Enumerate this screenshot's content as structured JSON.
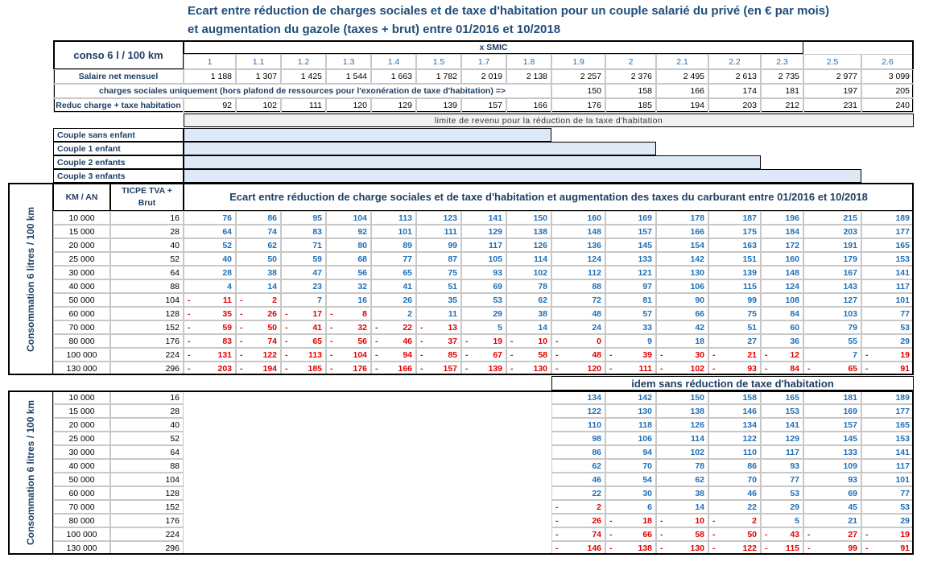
{
  "title": [
    "Ecart entre réduction de charges sociales et de taxe d'habitation pour un couple salarié du privé  (en € par mois)",
    "et augmentation du gazole (taxes + brut)  entre 01/2016 et 10/2018"
  ],
  "header": {
    "conso": "conso 6 l / 100 km",
    "smic_label": "x  SMIC",
    "smic": [
      "1",
      "1.1",
      "1.2",
      "1.3",
      "1.4",
      "1.5",
      "1.7",
      "1.8",
      "1.9",
      "2",
      "2.1",
      "2.2",
      "2.3",
      "2.5",
      "2.6"
    ]
  },
  "salary": {
    "label": "Salaire net mensuel",
    "values": [
      "1 188",
      "1 307",
      "1 425",
      "1 544",
      "1 663",
      "1 782",
      "2 019",
      "2 138",
      "2 257",
      "2 376",
      "2 495",
      "2 613",
      "2 735",
      "2 977",
      "3 099"
    ]
  },
  "charges": {
    "label": "charges sociales uniquement (hors plafond de ressources pour l'exonération de taxe d'habitation) =>",
    "values": [
      "150",
      "158",
      "166",
      "174",
      "181",
      "197",
      "205"
    ]
  },
  "reduc": {
    "label": "Reduc charge + taxe habitation",
    "values": [
      "92",
      "102",
      "111",
      "120",
      "129",
      "139",
      "157",
      "166",
      "176",
      "185",
      "194",
      "203",
      "212",
      "231",
      "240"
    ]
  },
  "limit": {
    "label": "limite de revenu pour la réduction de la taxe d'habitation",
    "couples": [
      "Couple sans enfant",
      "Couple 1 enfant",
      "Couple 2 enfants",
      "Couple 3 enfants"
    ]
  },
  "table1": {
    "side_label": "Consommation 6 litres / 100 km",
    "col_km": "KM / AN",
    "col_ticpe": "TICPE  TVA + Brut",
    "heading": "Ecart entre réduction de charge sociales et de taxe d'habitation et augmentation des taxes du carburant entre 01/2016 et 10/2018",
    "rows": [
      {
        "km": "10 000",
        "ticpe": "16",
        "values": [
          "76",
          "86",
          "95",
          "104",
          "113",
          "123",
          "141",
          "150",
          "160",
          "169",
          "178",
          "187",
          "196",
          "215",
          "189"
        ]
      },
      {
        "km": "15 000",
        "ticpe": "28",
        "values": [
          "64",
          "74",
          "83",
          "92",
          "101",
          "111",
          "129",
          "138",
          "148",
          "157",
          "166",
          "175",
          "184",
          "203",
          "177"
        ]
      },
      {
        "km": "20 000",
        "ticpe": "40",
        "values": [
          "52",
          "62",
          "71",
          "80",
          "89",
          "99",
          "117",
          "126",
          "136",
          "145",
          "154",
          "163",
          "172",
          "191",
          "165"
        ]
      },
      {
        "km": "25 000",
        "ticpe": "52",
        "values": [
          "40",
          "50",
          "59",
          "68",
          "77",
          "87",
          "105",
          "114",
          "124",
          "133",
          "142",
          "151",
          "160",
          "179",
          "153"
        ]
      },
      {
        "km": "30 000",
        "ticpe": "64",
        "values": [
          "28",
          "38",
          "47",
          "56",
          "65",
          "75",
          "93",
          "102",
          "112",
          "121",
          "130",
          "139",
          "148",
          "167",
          "141"
        ]
      },
      {
        "km": "40 000",
        "ticpe": "88",
        "values": [
          "4",
          "14",
          "23",
          "32",
          "41",
          "51",
          "69",
          "78",
          "88",
          "97",
          "106",
          "115",
          "124",
          "143",
          "117"
        ]
      },
      {
        "km": "50 000",
        "ticpe": "104",
        "values": [
          "- 11",
          "- 2",
          "7",
          "16",
          "26",
          "35",
          "53",
          "62",
          "72",
          "81",
          "90",
          "99",
          "108",
          "127",
          "101"
        ]
      },
      {
        "km": "60 000",
        "ticpe": "128",
        "values": [
          "- 35",
          "- 26",
          "- 17",
          "- 8",
          "2",
          "11",
          "29",
          "38",
          "48",
          "57",
          "66",
          "75",
          "84",
          "103",
          "77"
        ]
      },
      {
        "km": "70 000",
        "ticpe": "152",
        "values": [
          "- 59",
          "- 50",
          "- 41",
          "- 32",
          "- 22",
          "- 13",
          "5",
          "14",
          "24",
          "33",
          "42",
          "51",
          "60",
          "79",
          "53"
        ]
      },
      {
        "km": "80 000",
        "ticpe": "176",
        "values": [
          "- 83",
          "- 74",
          "- 65",
          "- 56",
          "- 46",
          "- 37",
          "- 19",
          "- 10",
          "- 0",
          "9",
          "18",
          "27",
          "36",
          "55",
          "29"
        ]
      },
      {
        "km": "100 000",
        "ticpe": "224",
        "values": [
          "- 131",
          "- 122",
          "- 113",
          "- 104",
          "- 94",
          "- 85",
          "- 67",
          "- 58",
          "- 48",
          "- 39",
          "- 30",
          "- 21",
          "- 12",
          "7",
          "- 19"
        ]
      },
      {
        "km": "130 000",
        "ticpe": "296",
        "values": [
          "- 203",
          "- 194",
          "- 185",
          "- 176",
          "- 166",
          "- 157",
          "- 139",
          "- 130",
          "- 120",
          "- 111",
          "- 102",
          "- 93",
          "- 84",
          "- 65",
          "- 91"
        ]
      }
    ]
  },
  "table2": {
    "side_label": "Consommation 6 litres / 100 km",
    "heading": "idem sans réduction de taxe d'habitation",
    "rows": [
      {
        "km": "10 000",
        "ticpe": "16",
        "values": [
          "134",
          "142",
          "150",
          "158",
          "165",
          "181",
          "189"
        ]
      },
      {
        "km": "15 000",
        "ticpe": "28",
        "values": [
          "122",
          "130",
          "138",
          "146",
          "153",
          "169",
          "177"
        ]
      },
      {
        "km": "20 000",
        "ticpe": "40",
        "values": [
          "110",
          "118",
          "126",
          "134",
          "141",
          "157",
          "165"
        ]
      },
      {
        "km": "25 000",
        "ticpe": "52",
        "values": [
          "98",
          "106",
          "114",
          "122",
          "129",
          "145",
          "153"
        ]
      },
      {
        "km": "30 000",
        "ticpe": "64",
        "values": [
          "86",
          "94",
          "102",
          "110",
          "117",
          "133",
          "141"
        ]
      },
      {
        "km": "40 000",
        "ticpe": "88",
        "values": [
          "62",
          "70",
          "78",
          "86",
          "93",
          "109",
          "117"
        ]
      },
      {
        "km": "50 000",
        "ticpe": "104",
        "values": [
          "46",
          "54",
          "62",
          "70",
          "77",
          "93",
          "101"
        ]
      },
      {
        "km": "60 000",
        "ticpe": "128",
        "values": [
          "22",
          "30",
          "38",
          "46",
          "53",
          "69",
          "77"
        ]
      },
      {
        "km": "70 000",
        "ticpe": "152",
        "values": [
          "- 2",
          "6",
          "14",
          "22",
          "29",
          "45",
          "53"
        ]
      },
      {
        "km": "80 000",
        "ticpe": "176",
        "values": [
          "- 26",
          "- 18",
          "- 10",
          "- 2",
          "5",
          "21",
          "29"
        ]
      },
      {
        "km": "100 000",
        "ticpe": "224",
        "values": [
          "- 74",
          "- 66",
          "- 58",
          "- 50",
          "- 43",
          "- 27",
          "- 19"
        ]
      },
      {
        "km": "130 000",
        "ticpe": "296",
        "values": [
          "- 146",
          "- 138",
          "- 130",
          "- 122",
          "- 115",
          "- 99",
          "- 91"
        ]
      }
    ]
  }
}
